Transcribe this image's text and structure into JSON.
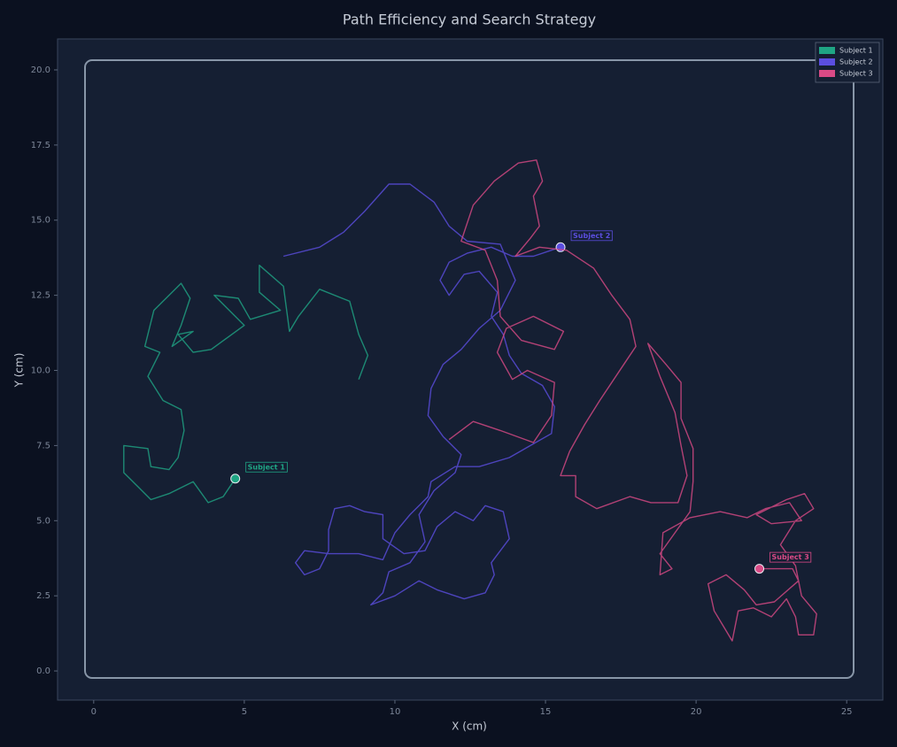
{
  "chart_data": {
    "type": "line",
    "title": "Path Efficiency and Search Strategy",
    "x_label": "X (cm)",
    "y_label": "Y (cm)",
    "xlim": [
      -1.2,
      26.2
    ],
    "ylim": [
      -0.97,
      21.03
    ],
    "xticks": [
      0,
      5,
      10,
      15,
      20,
      25
    ],
    "yticks": [
      {
        "value": 0,
        "label": "0.0"
      },
      2.5,
      {
        "value": 5,
        "label": "5.0"
      },
      7.5,
      {
        "value": 10,
        "label": "10.0"
      },
      12.5,
      {
        "value": 15,
        "label": "15.0"
      },
      17.5,
      {
        "value": 20,
        "label": "20.0"
      }
    ],
    "legend": "upper right",
    "series": [
      {
        "name": "Subject 1",
        "color": "#1fa584",
        "x": [
          8.8,
          9.1,
          8.8,
          8.5,
          7.5,
          6.8,
          6.5,
          6.3,
          5.5,
          5.5,
          6.2,
          5.2,
          4.8,
          4.0,
          5.0,
          3.9,
          3.3,
          2.8,
          3.3,
          2.6,
          2.9,
          3.2,
          2.9,
          2.0,
          1.8,
          1.7,
          2.2,
          1.8,
          2.3,
          2.9,
          3.0,
          2.8,
          2.5,
          1.9,
          1.8,
          1.0,
          1.0,
          1.5,
          1.9,
          2.5,
          3.3,
          3.8,
          4.3,
          4.7
        ],
        "values": [
          9.7,
          10.5,
          11.2,
          12.3,
          12.7,
          11.8,
          11.3,
          12.8,
          13.5,
          12.6,
          12.0,
          11.7,
          12.4,
          12.5,
          11.5,
          10.7,
          10.6,
          11.2,
          11.3,
          10.8,
          11.5,
          12.4,
          12.9,
          12.0,
          11.2,
          10.8,
          10.6,
          9.8,
          9.0,
          8.7,
          8.0,
          7.1,
          6.7,
          6.8,
          7.4,
          7.5,
          6.6,
          6.1,
          5.7,
          5.9,
          6.3,
          5.6,
          5.8,
          6.4
        ]
      },
      {
        "name": "Subject 2",
        "color": "#5b4ee0",
        "x": [
          6.3,
          7.5,
          8.3,
          9.0,
          9.8,
          10.5,
          11.3,
          11.8,
          12.4,
          13.5,
          14.0,
          13.5,
          12.8,
          12.2,
          11.6,
          11.2,
          11.1,
          11.6,
          12.2,
          12.0,
          11.3,
          10.8,
          11.0,
          10.5,
          9.8,
          9.6,
          9.2,
          10.0,
          10.8,
          11.4,
          12.3,
          13.0,
          13.3,
          13.2,
          13.8,
          13.6,
          13.0,
          12.6,
          12.0,
          11.4,
          11.0,
          10.3,
          9.6,
          9.6,
          9.0,
          8.5,
          8.0,
          7.8,
          7.8,
          7.5,
          7.0,
          6.7,
          7.0,
          7.8,
          8.8,
          9.6,
          10.0,
          10.5,
          11.1,
          11.2,
          12.0,
          12.8,
          13.8,
          14.5,
          15.2,
          15.3,
          14.9,
          14.2,
          13.8,
          13.6,
          13.2,
          13.4,
          12.8,
          12.3,
          11.8,
          11.5,
          11.8,
          12.4,
          13.2,
          13.9,
          14.6,
          15.5
        ],
        "values": [
          13.8,
          14.1,
          14.6,
          15.3,
          16.2,
          16.2,
          15.6,
          14.8,
          14.3,
          14.2,
          13.0,
          12.0,
          11.4,
          10.7,
          10.2,
          9.4,
          8.5,
          7.8,
          7.2,
          6.6,
          6.0,
          5.2,
          4.3,
          3.6,
          3.3,
          2.6,
          2.2,
          2.5,
          3.0,
          2.7,
          2.4,
          2.6,
          3.2,
          3.6,
          4.4,
          5.3,
          5.5,
          5.0,
          5.3,
          4.8,
          4.0,
          3.9,
          4.4,
          5.2,
          5.3,
          5.5,
          5.4,
          4.7,
          4.0,
          3.4,
          3.2,
          3.6,
          4.0,
          3.9,
          3.9,
          3.7,
          4.6,
          5.2,
          5.8,
          6.3,
          6.8,
          6.8,
          7.1,
          7.5,
          7.9,
          8.8,
          9.5,
          9.9,
          10.5,
          11.2,
          11.8,
          12.6,
          13.3,
          13.2,
          12.5,
          13.0,
          13.6,
          13.9,
          14.1,
          13.8,
          13.8,
          14.1
        ]
      },
      {
        "name": "Subject 3",
        "color": "#d94a86",
        "x": [
          11.8,
          12.6,
          13.5,
          14.6,
          15.2,
          15.3,
          14.4,
          13.9,
          13.4,
          13.7,
          14.6,
          15.6,
          15.3,
          14.2,
          13.5,
          13.4,
          13.0,
          12.2,
          12.6,
          13.3,
          14.1,
          14.7,
          14.9,
          14.6,
          14.8,
          14.5,
          14.0,
          14.8,
          15.7,
          16.6,
          17.2,
          17.8,
          18.0,
          17.6,
          16.8,
          16.3,
          15.8,
          15.5,
          16.0,
          16.0,
          16.7,
          17.8,
          18.5,
          19.4,
          19.7,
          19.5,
          19.3,
          18.8,
          18.4,
          19.0,
          19.5,
          19.5,
          19.9,
          19.9,
          19.8,
          19.3,
          18.8,
          19.2,
          18.8,
          18.9,
          19.8,
          20.8,
          21.7,
          22.3,
          23.1,
          23.5,
          22.5,
          22.0,
          23.0,
          23.6,
          23.9,
          23.3,
          22.8,
          23.3,
          23.5,
          24.0,
          23.9,
          23.4,
          23.3,
          23.0,
          22.5,
          21.9,
          21.4,
          21.2,
          20.9,
          20.6,
          20.4,
          21.0,
          21.6,
          22.0,
          22.6,
          23.4,
          23.2,
          22.1
        ],
        "values": [
          7.7,
          8.3,
          8.0,
          7.6,
          8.5,
          9.6,
          10.0,
          9.7,
          10.6,
          11.4,
          11.8,
          11.3,
          10.7,
          11.0,
          11.8,
          13.0,
          14.0,
          14.3,
          15.5,
          16.3,
          16.9,
          17.0,
          16.3,
          15.8,
          14.8,
          14.4,
          13.8,
          14.1,
          14.0,
          13.4,
          12.5,
          11.7,
          10.8,
          10.2,
          9.0,
          8.2,
          7.3,
          6.5,
          6.5,
          5.8,
          5.4,
          5.8,
          5.6,
          5.6,
          6.5,
          7.5,
          8.6,
          9.8,
          10.9,
          10.2,
          9.6,
          8.4,
          7.4,
          6.3,
          5.3,
          4.6,
          3.9,
          3.4,
          3.2,
          4.6,
          5.1,
          5.3,
          5.1,
          5.4,
          5.6,
          5.0,
          4.9,
          5.2,
          5.7,
          5.9,
          5.4,
          5.0,
          4.2,
          3.5,
          2.5,
          1.9,
          1.2,
          1.2,
          1.8,
          2.4,
          1.8,
          2.1,
          2.0,
          1.0,
          1.5,
          2.0,
          2.9,
          3.2,
          2.7,
          2.2,
          2.3,
          3.0,
          3.4,
          3.4
        ]
      }
    ]
  }
}
